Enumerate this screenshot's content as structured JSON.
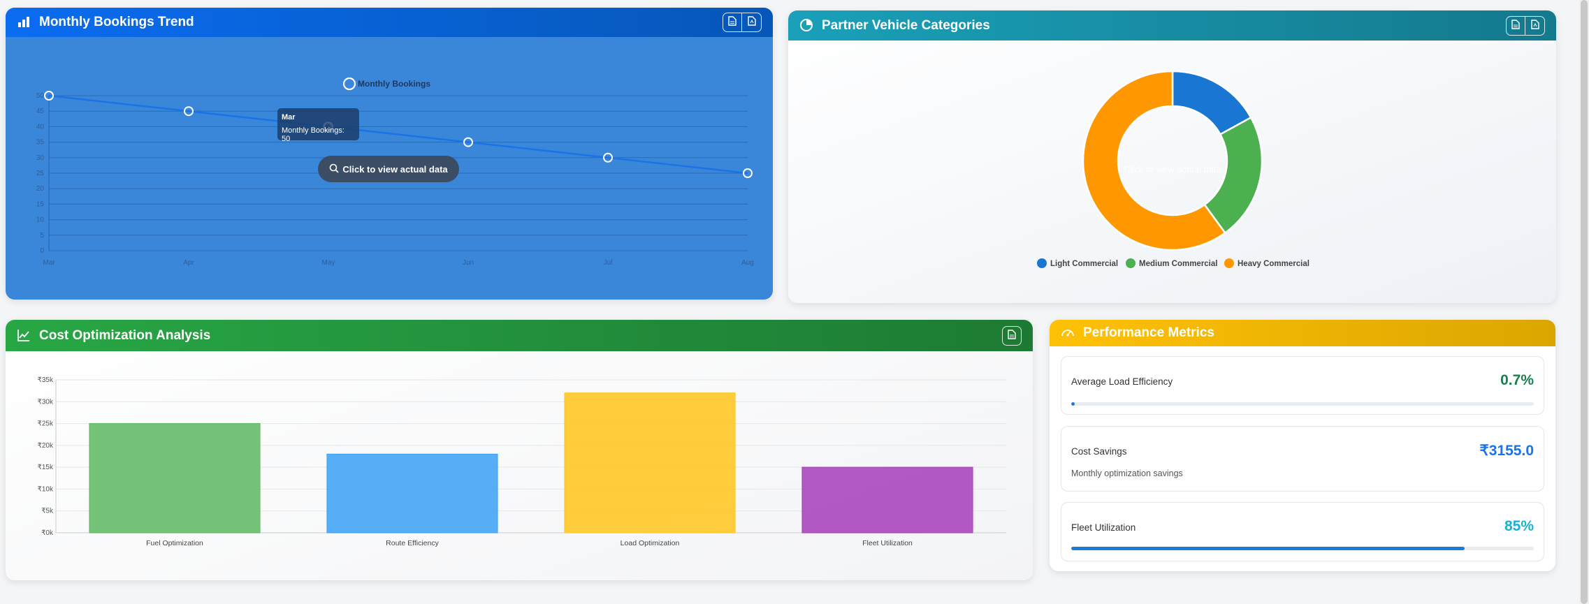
{
  "colors": {
    "bookings_header": "#0b6cf0",
    "vehicles_header": "#1aa0b9",
    "cost_header": "#28a745",
    "perf_header": "#ffc107",
    "line": "#1a73e8",
    "light_commercial": "#1976d2",
    "medium_commercial": "#4caf50",
    "heavy_commercial": "#ff9800"
  },
  "bookings_card": {
    "title": "Monthly Bookings Trend",
    "icon": "bar-chart-icon",
    "buttons": [
      "file-icon",
      "pdf-icon"
    ],
    "tooltip": {
      "title": "Mar",
      "body": "Monthly Bookings: 50"
    },
    "click_hint": "Click to view actual data"
  },
  "vehicles_card": {
    "title": "Partner Vehicle Categories",
    "icon": "pie-chart-icon",
    "buttons": [
      "file-icon",
      "pdf-icon"
    ],
    "center_hint": "Click to view actual data"
  },
  "cost_card": {
    "title": "Cost Optimization Analysis",
    "icon": "line-chart-icon",
    "buttons": [
      "file-icon"
    ]
  },
  "perf_card": {
    "title": "Performance Metrics",
    "icon": "speedometer-icon",
    "metrics": [
      {
        "label": "Average Load Efficiency",
        "value": "0.7%",
        "color": "#1a7f4b",
        "progress": 0.007
      },
      {
        "label": "Cost Savings",
        "value": "₹3155.0",
        "color": "#1a73e8",
        "subtitle": "Monthly optimization savings"
      },
      {
        "label": "Fleet Utilization",
        "value": "85%",
        "color": "#17b3d0",
        "progress": 0.85
      }
    ]
  },
  "chart_data": [
    {
      "type": "line",
      "legend": "Monthly Bookings",
      "x": [
        "Mar",
        "Apr",
        "May",
        "Jun",
        "Jul",
        "Aug"
      ],
      "series": [
        {
          "name": "Monthly Bookings",
          "values": [
            50,
            45,
            40,
            35,
            30,
            25
          ]
        }
      ],
      "yticks": [
        "0",
        "5",
        "10",
        "15",
        "20",
        "25",
        "30",
        "35",
        "40",
        "45",
        "50"
      ],
      "ylim": [
        0,
        50
      ],
      "grid": true
    },
    {
      "type": "pie",
      "donut": true,
      "categories": [
        "Light Commercial",
        "Medium Commercial",
        "Heavy Commercial"
      ],
      "values": [
        17,
        23,
        60
      ],
      "legend_position": "bottom"
    },
    {
      "type": "bar",
      "categories": [
        "Fuel Optimization",
        "Route Efficiency",
        "Load Optimization",
        "Fleet Utilization"
      ],
      "values": [
        25000,
        18000,
        32000,
        15000
      ],
      "colors": [
        "#66bb6a",
        "#42a5f5",
        "#ffc727",
        "#ab47bc"
      ],
      "yticks": [
        "₹0k",
        "₹5k",
        "₹10k",
        "₹15k",
        "₹20k",
        "₹25k",
        "₹30k",
        "₹35k"
      ],
      "ylim": [
        0,
        35000
      ],
      "grid": true
    }
  ]
}
